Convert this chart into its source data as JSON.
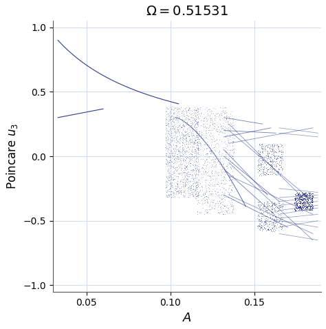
{
  "title": "$\\Omega = 0.51531$",
  "xlabel": "$A$",
  "ylabel": "Poincare $u_3$",
  "xlim": [
    0.03,
    0.19
  ],
  "ylim": [
    -1.05,
    1.05
  ],
  "xticks": [
    0.05,
    0.1,
    0.15
  ],
  "yticks": [
    -1,
    -0.5,
    0,
    0.5,
    1
  ],
  "color": "#1a2580",
  "bg_color": "#ffffff",
  "grid_color": "#c8d0e8",
  "figsize": [
    4.74,
    4.78
  ],
  "dpi": 100
}
